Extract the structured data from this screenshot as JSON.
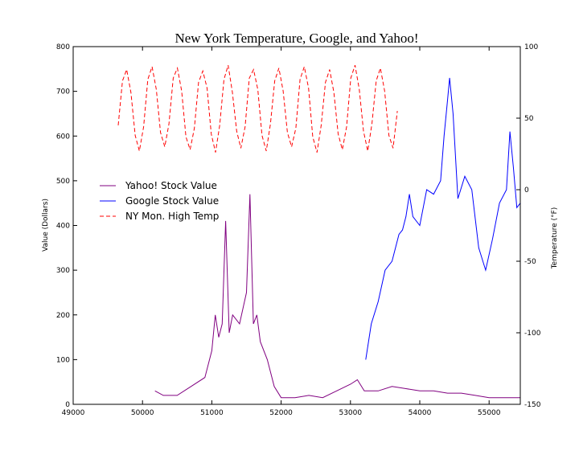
{
  "chart_data": {
    "type": "line",
    "title": "New York Temperature, Google, and Yahoo!",
    "y_label": "Value (Dollars)",
    "y2_label": "Temperature (°F)",
    "xlim": [
      49000,
      55450
    ],
    "xticks": [
      49000,
      50000,
      51000,
      52000,
      53000,
      54000,
      55000
    ],
    "ylim": [
      0,
      800
    ],
    "yticks": [
      0,
      100,
      200,
      300,
      400,
      500,
      600,
      700,
      800
    ],
    "y2lim": [
      -150,
      100
    ],
    "y2ticks": [
      -150,
      -100,
      -50,
      0,
      50,
      100
    ],
    "legend": "center left",
    "series": [
      {
        "name": "Yahoo! Stock Value",
        "color": "#800080",
        "dash": false,
        "x": [
          50180,
          50300,
          50500,
          50700,
          50900,
          51000,
          51050,
          51100,
          51150,
          51200,
          51250,
          51300,
          51400,
          51500,
          51550,
          51600,
          51650,
          51700,
          51800,
          51900,
          52000,
          52200,
          52400,
          52600,
          52800,
          53000,
          53100,
          53200,
          53400,
          53600,
          53800,
          54000,
          54200,
          54400,
          54600,
          54800,
          55000,
          55200,
          55450
        ],
        "values": [
          30,
          20,
          20,
          40,
          60,
          120,
          200,
          150,
          180,
          410,
          160,
          200,
          180,
          250,
          470,
          180,
          200,
          140,
          100,
          40,
          15,
          15,
          20,
          15,
          30,
          45,
          55,
          30,
          30,
          40,
          35,
          30,
          30,
          25,
          25,
          20,
          15,
          15,
          15
        ]
      },
      {
        "name": "Google Stock Value",
        "color": "#0000ff",
        "dash": false,
        "x": [
          53220,
          53250,
          53300,
          53400,
          53500,
          53600,
          53700,
          53750,
          53800,
          53850,
          53900,
          54000,
          54100,
          54200,
          54300,
          54350,
          54400,
          54430,
          54480,
          54550,
          54650,
          54750,
          54850,
          54950,
          55050,
          55150,
          55250,
          55300,
          55350,
          55400,
          55450
        ],
        "values": [
          100,
          130,
          180,
          230,
          300,
          320,
          380,
          390,
          420,
          470,
          420,
          400,
          480,
          470,
          500,
          600,
          680,
          730,
          650,
          460,
          510,
          480,
          350,
          300,
          370,
          450,
          480,
          610,
          530,
          440,
          450
        ]
      },
      {
        "name": "NY Mon. High Temp",
        "color": "#ff0000",
        "dash": true,
        "axis": "y2",
        "x": [
          49650,
          49711,
          49772,
          49833,
          49894,
          49955,
          50016,
          50077,
          50138,
          50199,
          50260,
          50321,
          50382,
          50443,
          50504,
          50565,
          50626,
          50687,
          50748,
          50809,
          50870,
          50931,
          50992,
          51053,
          51114,
          51175,
          51236,
          51297,
          51358,
          51419,
          51480,
          51541,
          51602,
          51663,
          51724,
          51785,
          51846,
          51907,
          51968,
          52029,
          52090,
          52151,
          52212,
          52273,
          52334,
          52395,
          52456,
          52517,
          52578,
          52639,
          52700,
          52761,
          52822,
          52883,
          52944,
          53005,
          53066,
          53127,
          53188,
          53249,
          53310,
          53371,
          53432,
          53493,
          53554,
          53615,
          53676
        ],
        "values": [
          45,
          76,
          84,
          68,
          38,
          27,
          44,
          77,
          86,
          70,
          40,
          30,
          46,
          78,
          85,
          69,
          37,
          28,
          43,
          75,
          83,
          71,
          39,
          26,
          45,
          77,
          87,
          68,
          41,
          29,
          44,
          78,
          84,
          70,
          38,
          27,
          46,
          76,
          85,
          69,
          40,
          30,
          43,
          77,
          86,
          71,
          37,
          26,
          45,
          75,
          84,
          68,
          39,
          28,
          44,
          78,
          87,
          70,
          41,
          27,
          46,
          76,
          85,
          69,
          38,
          29,
          55
        ]
      }
    ]
  }
}
